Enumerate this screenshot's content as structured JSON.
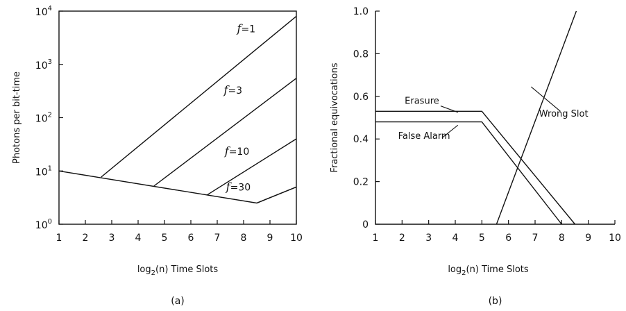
{
  "chart_data": [
    {
      "type": "line",
      "caption": "(a)",
      "xlabel_main": "log",
      "xlabel_sub": "2",
      "xlabel_rest": "(n) Time Slots",
      "ylabel": "Photons per bit-time",
      "xlim": [
        1,
        10
      ],
      "ylim": [
        1,
        10000
      ],
      "yscale": "log",
      "grid": false,
      "xticks": [
        "1",
        "2",
        "3",
        "4",
        "5",
        "6",
        "7",
        "8",
        "9",
        "10"
      ],
      "yticks": [
        {
          "base": "10",
          "exp": "0",
          "value": 1
        },
        {
          "base": "10",
          "exp": "1",
          "value": 10
        },
        {
          "base": "10",
          "exp": "2",
          "value": 100
        },
        {
          "base": "10",
          "exp": "3",
          "value": 1000
        },
        {
          "base": "10",
          "exp": "4",
          "value": 10000
        }
      ],
      "series": [
        {
          "id": "envelope",
          "x": [
            1,
            8.5,
            10
          ],
          "y": [
            10,
            2.5,
            5
          ]
        },
        {
          "id": "f1",
          "label_prefix": "f",
          "label_suffix": "=1",
          "x": [
            2.6,
            10
          ],
          "y": [
            7.7,
            8000
          ]
        },
        {
          "id": "f3",
          "label_prefix": "f",
          "label_suffix": "=3",
          "x": [
            4.6,
            10
          ],
          "y": [
            5.2,
            550
          ]
        },
        {
          "id": "f10",
          "label_prefix": "f",
          "label_suffix": "=10",
          "x": [
            6.6,
            10
          ],
          "y": [
            3.5,
            40
          ]
        },
        {
          "id": "f30",
          "label_prefix": "f",
          "label_suffix": "=30",
          "x": [
            8.5,
            10
          ],
          "y": [
            2.5,
            5
          ]
        }
      ],
      "label_positions": {
        "f1": [
          8.1,
          4000
        ],
        "f3": [
          7.6,
          280
        ],
        "f10": [
          7.75,
          20
        ],
        "f30": [
          7.8,
          4.3
        ]
      }
    },
    {
      "type": "line",
      "caption": "(b)",
      "xlabel_main": "log",
      "xlabel_sub": "2",
      "xlabel_rest": "(n)  Time Slots",
      "ylabel": "Fractional equivocations",
      "xlim": [
        1,
        10
      ],
      "ylim": [
        0,
        1
      ],
      "grid": false,
      "xticks": [
        "1",
        "2",
        "3",
        "4",
        "5",
        "6",
        "7",
        "8",
        "9",
        "10"
      ],
      "yticks": [
        "0",
        "0.2",
        "0.4",
        "0.6",
        "0.8",
        "1.0"
      ],
      "series": [
        {
          "name": "Erasure",
          "x": [
            1,
            5,
            8.5
          ],
          "y": [
            0.53,
            0.53,
            0
          ]
        },
        {
          "name": "False Alarm",
          "x": [
            1,
            5,
            8
          ],
          "y": [
            0.48,
            0.48,
            0
          ]
        },
        {
          "name": "Wrong Slot",
          "x": [
            5.55,
            8.55
          ],
          "y": [
            0,
            1
          ]
        }
      ],
      "annotations": [
        {
          "text": "Erasure",
          "x": 2.1,
          "y": 0.565
        },
        {
          "text": "False Alarm",
          "x": 1.85,
          "y": 0.4
        },
        {
          "text": "Wrong Slot",
          "x": 7.15,
          "y": 0.505
        }
      ],
      "leaders": [
        {
          "from": [
            3.45,
            0.555
          ],
          "to": [
            4.1,
            0.525
          ]
        },
        {
          "from": [
            3.5,
            0.405
          ],
          "to": [
            4.1,
            0.465
          ]
        },
        {
          "from": [
            6.85,
            0.645
          ],
          "to": [
            7.95,
            0.53
          ]
        }
      ]
    }
  ]
}
